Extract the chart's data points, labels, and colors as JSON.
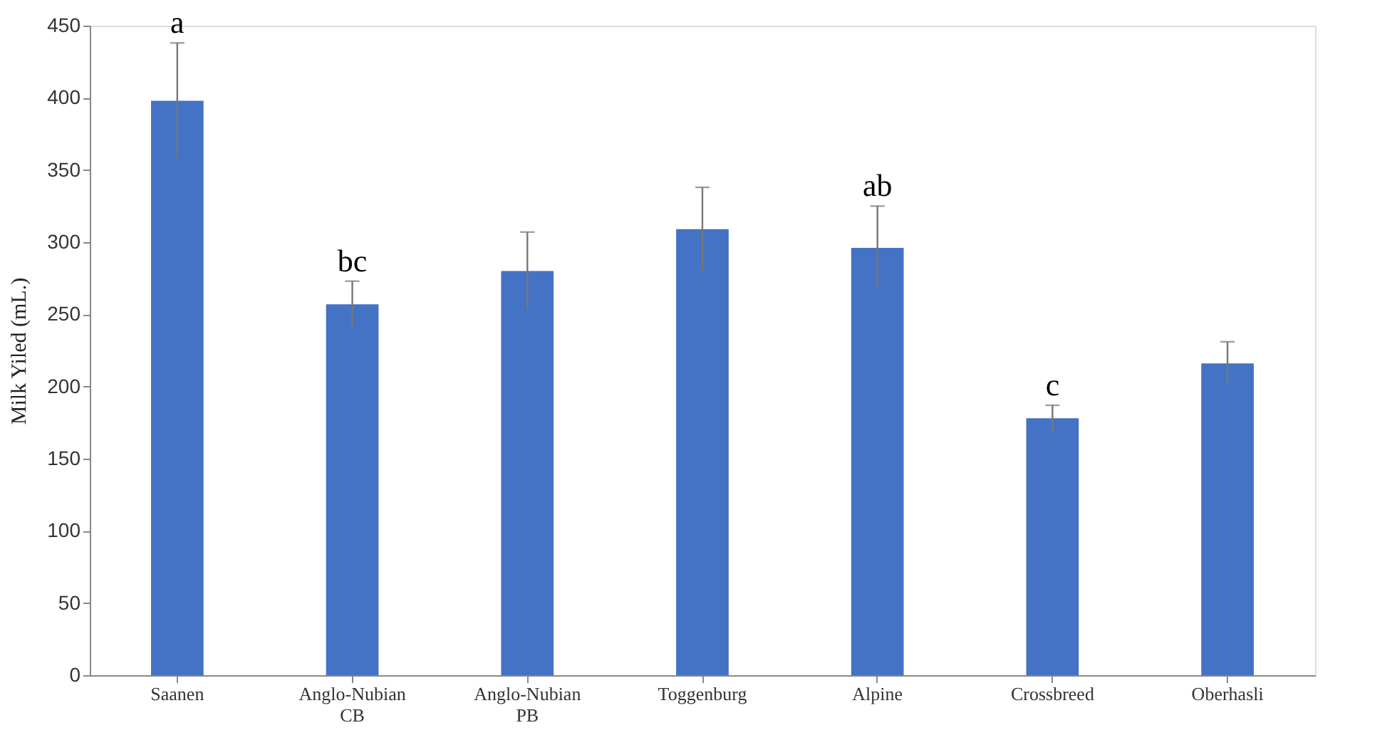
{
  "chart_data": {
    "type": "bar",
    "ylabel": "Milk Yiled (mL.)",
    "categories": [
      "Saanen",
      "Anglo-Nubian\nCB",
      "Anglo-Nubian\nPB",
      "Toggenburg",
      "Alpine",
      "Crossbreed",
      "Oberhasli"
    ],
    "values": [
      398,
      257,
      280,
      309,
      296,
      178,
      216
    ],
    "errors": [
      40,
      16,
      27,
      29,
      29,
      9,
      15
    ],
    "color": "#4472c4",
    "ylim": [
      0,
      450
    ],
    "yticks": [
      0,
      50,
      100,
      150,
      200,
      250,
      300,
      350,
      400,
      450
    ],
    "grid": false,
    "annotations": [
      {
        "text": "a",
        "x": "Saanen",
        "y": 438
      },
      {
        "text": "bc",
        "x": "Anglo-Nubian\nCB",
        "y": 273
      },
      {
        "text": "ab",
        "x": "Alpine",
        "y": 325
      },
      {
        "text": "c",
        "x": "Crossbreed",
        "y": 187
      }
    ]
  }
}
